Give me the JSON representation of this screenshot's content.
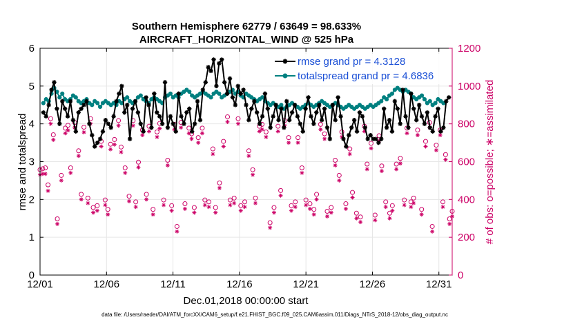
{
  "colors": {
    "rmse": "#000000",
    "spread": "#008080",
    "obs": "#CC0066",
    "grid": "#e6e6e6",
    "legend_text": "#1a4fd6"
  },
  "chart_data": {
    "type": "line",
    "title_line1": "Southern Hemisphere 62779 / 63649 = 98.633%",
    "title_line2": "AIRCRAFT_HORIZONTAL_WIND @ 525 hPa",
    "xlabel": "Dec.01,2018 00:00:00 start",
    "ylabel_left": "rmse and totalspread",
    "ylabel_right": "# of obs: o=possible; ∗=assimilated",
    "footnote": "data file: /Users/raeder/DAI/ATM_forcXX/CAM6_setup/f.e21.FHIST_BGC.f09_025.CAM6assim.011/Diags_NTrS_2018-12/obs_diag_output.nc",
    "xlim": [
      0,
      31
    ],
    "ylim_left": [
      0,
      6
    ],
    "ylim_right": [
      0,
      1200
    ],
    "x_ticks": [
      {
        "value": 0,
        "label": "12/01"
      },
      {
        "value": 5,
        "label": "12/06"
      },
      {
        "value": 10,
        "label": "12/11"
      },
      {
        "value": 15,
        "label": "12/16"
      },
      {
        "value": 20,
        "label": "12/21"
      },
      {
        "value": 25,
        "label": "12/26"
      },
      {
        "value": 30,
        "label": "12/31"
      }
    ],
    "y_ticks_left": [
      "0",
      "1",
      "2",
      "3",
      "4",
      "5",
      "6"
    ],
    "y_ticks_right": [
      "0",
      "200",
      "400",
      "600",
      "800",
      "1000",
      "1200"
    ],
    "series": [
      {
        "name": "rmse",
        "legend": "rmse grand pr = 4.3128",
        "values": [
          4.3,
          4.2,
          4.5,
          4.9,
          5.1,
          4.4,
          4.0,
          4.6,
          4.4,
          4.2,
          4.6,
          4.1,
          3.8,
          4.3,
          4.4,
          4.5,
          4.6,
          4.0,
          3.7,
          3.4,
          3.5,
          3.6,
          3.8,
          4.1,
          4.0,
          3.9,
          4.2,
          4.6,
          4.8,
          5.0,
          4.3,
          4.5,
          3.6,
          4.4,
          4.6,
          4.3,
          4.0,
          3.8,
          4.7,
          4.5,
          3.9,
          4.8,
          4.3,
          4.2,
          4.0,
          5.1,
          3.9,
          4.2,
          4.0,
          3.8,
          4.8,
          4.2,
          4.0,
          4.3,
          4.4,
          3.8,
          4.0,
          4.6,
          4.1,
          4.9,
          5.1,
          5.5,
          5.4,
          5.7,
          5.0,
          5.6,
          5.7,
          5.1,
          4.8,
          5.2,
          4.7,
          4.5,
          5.0,
          4.8,
          4.9,
          4.5,
          4.1,
          4.4,
          4.6,
          4.3,
          4.0,
          4.2,
          4.8,
          4.4,
          3.9,
          4.2,
          4.5,
          4.1,
          4.4,
          3.9,
          4.6,
          4.1,
          4.3,
          4.5,
          4.2,
          4.0,
          3.8,
          4.4,
          4.7,
          4.2,
          4.0,
          4.3,
          4.5,
          4.1,
          4.4,
          3.9,
          3.6,
          4.5,
          4.1,
          4.7,
          4.2,
          3.6,
          3.4,
          3.7,
          3.9,
          4.1,
          3.8,
          4.3,
          4.2,
          3.9,
          3.6,
          3.7,
          3.6,
          3.6,
          3.5,
          3.6,
          4.4,
          3.9,
          4.1,
          3.8,
          4.6,
          4.4,
          4.0,
          4.9,
          4.2,
          3.9,
          4.8,
          4.4,
          4.1,
          4.5,
          4.2,
          4.0,
          4.3,
          3.9,
          3.8,
          4.2,
          4.4,
          3.8,
          3.9,
          4.6,
          4.7
        ]
      },
      {
        "name": "totalspread",
        "legend": "totalspread grand pr = 4.6836",
        "values": [
          4.55,
          4.65,
          4.6,
          4.8,
          4.95,
          4.85,
          4.7,
          4.8,
          4.65,
          4.6,
          4.65,
          4.75,
          4.7,
          4.6,
          4.55,
          4.6,
          4.65,
          4.55,
          4.5,
          4.6,
          4.55,
          4.45,
          4.55,
          4.6,
          4.55,
          4.5,
          4.55,
          4.5,
          4.6,
          4.55,
          4.65,
          4.7,
          4.6,
          4.55,
          4.6,
          4.7,
          4.75,
          4.65,
          4.6,
          4.55,
          4.65,
          4.7,
          4.65,
          4.6,
          4.55,
          4.7,
          4.75,
          4.8,
          4.7,
          4.75,
          4.7,
          4.8,
          4.85,
          4.9,
          4.85,
          4.75,
          4.7,
          4.75,
          4.8,
          4.85,
          4.8,
          4.75,
          4.7,
          4.8,
          4.85,
          4.8,
          4.7,
          4.75,
          4.8,
          4.85,
          4.9,
          4.8,
          4.85,
          4.75,
          4.7,
          4.8,
          4.75,
          4.7,
          4.65,
          4.6,
          4.65,
          4.7,
          4.6,
          4.55,
          4.5,
          4.55,
          4.5,
          4.45,
          4.5,
          4.4,
          4.45,
          4.5,
          4.55,
          4.5,
          4.45,
          4.4,
          4.45,
          4.5,
          4.55,
          4.5,
          4.45,
          4.5,
          4.55,
          4.6,
          4.55,
          4.5,
          4.45,
          4.5,
          4.55,
          4.5,
          4.45,
          4.4,
          4.45,
          4.5,
          4.45,
          4.4,
          4.45,
          4.5,
          4.45,
          4.4,
          4.45,
          4.5,
          4.45,
          4.5,
          4.55,
          4.6,
          4.7,
          4.65,
          4.75,
          4.8,
          4.9,
          4.95,
          4.9,
          4.85,
          4.9,
          4.85,
          4.8,
          4.7,
          4.65,
          4.7,
          4.75,
          4.65,
          4.55,
          4.6,
          4.5,
          4.55,
          4.65,
          4.6,
          4.55
        ]
      }
    ],
    "obs_possible_times": [
      0.0,
      0.2,
      0.4,
      0.6,
      0.8,
      1.0,
      1.3,
      1.6,
      1.9,
      2.1,
      2.3,
      2.6,
      2.9,
      3.1,
      3.3,
      3.6,
      3.8,
      4.0,
      4.3,
      4.6,
      4.9,
      5.1,
      5.3,
      5.6,
      5.9,
      6.1,
      6.4,
      6.7,
      7.0,
      7.2,
      7.4,
      7.7,
      8.0,
      8.2,
      8.5,
      8.8,
      9.0,
      9.3,
      9.6,
      9.9,
      10.1,
      10.3,
      10.6,
      10.9,
      11.2,
      11.4,
      11.6,
      11.9,
      12.2,
      12.4,
      12.7,
      13.0,
      13.2,
      13.5,
      13.8,
      14.1,
      14.3,
      14.6,
      14.9,
      15.1,
      15.4,
      15.7,
      16.0,
      16.2,
      16.5,
      16.7,
      17.0,
      17.3,
      17.6,
      17.9,
      18.1,
      18.4,
      18.7,
      18.9,
      19.2,
      19.4,
      19.7,
      20.0,
      20.3,
      20.6,
      20.8,
      21.1,
      21.4,
      21.6,
      21.9,
      22.2,
      22.5,
      22.7,
      23.0,
      23.3,
      23.5,
      23.8,
      24.1,
      24.4,
      24.6,
      24.9,
      25.2,
      25.5,
      25.7,
      26.0,
      26.3,
      26.5,
      26.8,
      27.1,
      27.4,
      27.6,
      27.9,
      28.1,
      28.4,
      28.7,
      29.0,
      29.3,
      29.5,
      29.8,
      30.1,
      30.3,
      30.5,
      30.8,
      31.0
    ],
    "obs_possible": [
      550,
      555,
      560,
      470,
      820,
      735,
      290,
      520,
      770,
      785,
      560,
      800,
      650,
      420,
      775,
      400,
      820,
      350,
      360,
      700,
      390,
      340,
      685,
      710,
      810,
      670,
      560,
      410,
      810,
      380,
      590,
      760,
      420,
      780,
      340,
      750,
      795,
      390,
      600,
      360,
      790,
      250,
      800,
      370,
      770,
      740,
      350,
      720,
      770,
      390,
      380,
      660,
      350,
      480,
      700,
      830,
      390,
      400,
      820,
      360,
      380,
      650,
      550,
      400,
      780,
      790,
      750,
      270,
      350,
      780,
      440,
      810,
      720,
      360,
      380,
      720,
      560,
      390,
      370,
      340,
      420,
      790,
      740,
      330,
      350,
      600,
      520,
      750,
      370,
      660,
      430,
      320,
      300,
      780,
      580,
      690,
      310,
      730,
      570,
      380,
      320,
      360,
      580,
      610,
      390,
      770,
      380,
      400,
      760,
      340,
      700,
      800,
      250,
      680,
      760,
      380,
      630,
      290,
      330,
      320,
      0
    ],
    "obs_assimilated": [
      545,
      550,
      550,
      460,
      815,
      730,
      285,
      515,
      765,
      780,
      555,
      795,
      645,
      415,
      770,
      395,
      815,
      345,
      355,
      695,
      385,
      335,
      680,
      705,
      805,
      665,
      555,
      405,
      805,
      375,
      585,
      755,
      415,
      775,
      335,
      745,
      790,
      385,
      595,
      355,
      785,
      245,
      795,
      365,
      765,
      735,
      345,
      715,
      765,
      385,
      375,
      655,
      345,
      475,
      695,
      825,
      385,
      395,
      815,
      355,
      375,
      645,
      545,
      395,
      775,
      785,
      745,
      265,
      345,
      775,
      435,
      805,
      715,
      355,
      375,
      715,
      555,
      385,
      365,
      335,
      415,
      785,
      735,
      325,
      345,
      595,
      515,
      745,
      365,
      655,
      425,
      315,
      295,
      775,
      575,
      685,
      305,
      725,
      565,
      375,
      315,
      355,
      575,
      605,
      385,
      765,
      375,
      395,
      755,
      335,
      695,
      795,
      245,
      675,
      755,
      375,
      625,
      285,
      325,
      315,
      0
    ]
  }
}
